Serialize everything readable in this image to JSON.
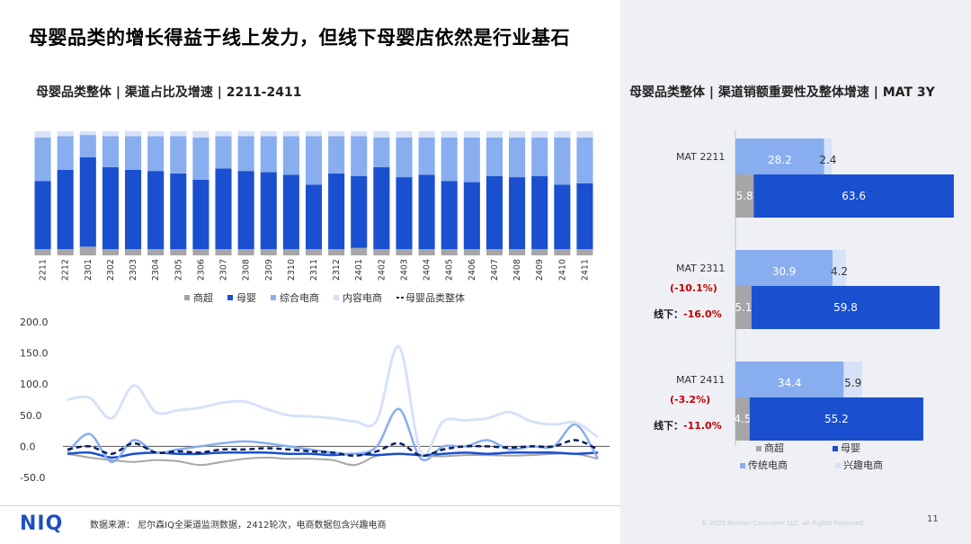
{
  "header": {
    "title": "母婴品类的增长得益于线上发力，但线下母婴店依然是行业基石",
    "left_subtitle": "母婴品类整体 | 渠道占比及增速 | 2211-2411",
    "right_subtitle": "母婴品类整体 | 渠道销额重要性及整体增速 | MAT 3Y"
  },
  "footer": {
    "logo": "NIQ",
    "source": "数据来源：  尼尔森IQ全渠道监测数据，2412轮次，电商数据包含兴趣电商",
    "copyright": "© 2025 Nielsen Consumer LLC. All Rights Reserved.",
    "page": "11"
  },
  "colors": {
    "supermarket": "#a6a6a6",
    "maternity": "#1a4fd0",
    "ecommerce": "#88aef0",
    "content": "#d6e2f8",
    "overall": "#0a1f5c",
    "negative": "#c00000"
  },
  "chart_data": [
    {
      "type": "bar",
      "stacked": true,
      "normalized": true,
      "categories": [
        "2211",
        "2212",
        "2301",
        "2302",
        "2303",
        "2304",
        "2305",
        "2306",
        "2307",
        "2308",
        "2309",
        "2310",
        "2311",
        "2312",
        "2401",
        "2402",
        "2403",
        "2404",
        "2405",
        "2406",
        "2407",
        "2408",
        "2409",
        "2410",
        "2411"
      ],
      "series": [
        {
          "name": "商超",
          "values": [
            5,
            5,
            7,
            5,
            5,
            5,
            5,
            5,
            5,
            5,
            5,
            5,
            5,
            5,
            6,
            5,
            5,
            5,
            5,
            5,
            5,
            5,
            5,
            5,
            5
          ]
        },
        {
          "name": "母婴",
          "values": [
            55,
            64,
            72,
            66,
            64,
            63,
            61,
            56,
            65,
            63,
            62,
            60,
            52,
            61,
            58,
            66,
            58,
            60,
            55,
            54,
            59,
            58,
            59,
            52,
            53
          ]
        },
        {
          "name": "综合电商",
          "values": [
            35,
            27,
            18,
            25,
            27,
            28,
            30,
            34,
            26,
            28,
            29,
            31,
            39,
            30,
            32,
            24,
            32,
            30,
            35,
            36,
            31,
            32,
            31,
            38,
            37
          ]
        },
        {
          "name": "内容电商",
          "values": [
            5,
            4,
            3,
            4,
            4,
            4,
            4,
            5,
            4,
            4,
            4,
            4,
            4,
            4,
            4,
            5,
            5,
            5,
            5,
            5,
            5,
            5,
            5,
            5,
            5
          ]
        }
      ],
      "legend": [
        "商超",
        "母婴",
        "综合电商",
        "内容电商",
        "母婴品类整体"
      ],
      "legend_position": "bottom"
    },
    {
      "type": "line",
      "x": [
        "2211",
        "2212",
        "2301",
        "2302",
        "2303",
        "2304",
        "2305",
        "2306",
        "2307",
        "2308",
        "2309",
        "2310",
        "2311",
        "2312",
        "2401",
        "2402",
        "2403",
        "2404",
        "2405",
        "2406",
        "2407",
        "2408",
        "2409",
        "2410",
        "2411"
      ],
      "ylim": [
        -50,
        200
      ],
      "yticks": [
        "200.0",
        "150.0",
        "100.0",
        "50.0",
        "0.0",
        "-50.0"
      ],
      "series": [
        {
          "name": "商超",
          "values": [
            -12,
            -18,
            -22,
            -25,
            -22,
            -24,
            -30,
            -25,
            -20,
            -18,
            -20,
            -20,
            -22,
            -30,
            -15,
            -12,
            -15,
            -16,
            -14,
            -14,
            -15,
            -14,
            -12,
            -12,
            -20
          ]
        },
        {
          "name": "母婴",
          "values": [
            -12,
            -10,
            -18,
            -12,
            -10,
            -12,
            -12,
            -10,
            -10,
            -10,
            -12,
            -12,
            -14,
            -12,
            -14,
            -12,
            -14,
            -12,
            -10,
            -12,
            -10,
            -10,
            -10,
            -12,
            -10
          ]
        },
        {
          "name": "综合电商",
          "values": [
            -10,
            20,
            -25,
            10,
            -10,
            -5,
            0,
            5,
            8,
            5,
            0,
            -5,
            -10,
            -12,
            0,
            60,
            -20,
            0,
            0,
            10,
            -5,
            0,
            0,
            35,
            -20
          ]
        },
        {
          "name": "内容电商",
          "values": [
            75,
            78,
            45,
            98,
            55,
            58,
            62,
            70,
            72,
            60,
            50,
            48,
            45,
            40,
            42,
            160,
            -10,
            40,
            42,
            45,
            55,
            40,
            35,
            38,
            15
          ]
        },
        {
          "name": "母婴品类整体",
          "values": [
            -5,
            0,
            -12,
            5,
            -10,
            -8,
            -10,
            -5,
            -5,
            -3,
            -5,
            -8,
            -10,
            -15,
            -8,
            5,
            -15,
            -5,
            0,
            0,
            -2,
            0,
            0,
            10,
            -5
          ]
        }
      ]
    },
    {
      "type": "bar",
      "orientation": "horizontal",
      "stacked": true,
      "groups": [
        {
          "label": "MAT 2211",
          "growth": "",
          "offline_label": "",
          "offline_growth": "",
          "online": [
            {
              "series": "传统电商",
              "value": 28.2
            },
            {
              "series": "兴趣电商",
              "value": 2.4
            }
          ],
          "offline": [
            {
              "series": "商超",
              "value": 5.8
            },
            {
              "series": "母婴",
              "value": 63.6
            }
          ]
        },
        {
          "label": "MAT 2311",
          "growth": "(-10.1%)",
          "offline_label": "线下：",
          "offline_growth": "-16.0%",
          "online": [
            {
              "series": "传统电商",
              "value": 30.9
            },
            {
              "series": "兴趣电商",
              "value": 4.2
            }
          ],
          "offline": [
            {
              "series": "商超",
              "value": 5.1
            },
            {
              "series": "母婴",
              "value": 59.8
            }
          ]
        },
        {
          "label": "MAT 2411",
          "growth": "(-3.2%)",
          "offline_label": "线下：",
          "offline_growth": "-11.0%",
          "online": [
            {
              "series": "传统电商",
              "value": 34.4
            },
            {
              "series": "兴趣电商",
              "value": 5.9
            }
          ],
          "offline": [
            {
              "series": "商超",
              "value": 4.5
            },
            {
              "series": "母婴",
              "value": 55.2
            }
          ]
        }
      ],
      "legend": [
        "商超",
        "母婴",
        "传统电商",
        "兴趣电商"
      ],
      "legend_position": "bottom"
    }
  ]
}
